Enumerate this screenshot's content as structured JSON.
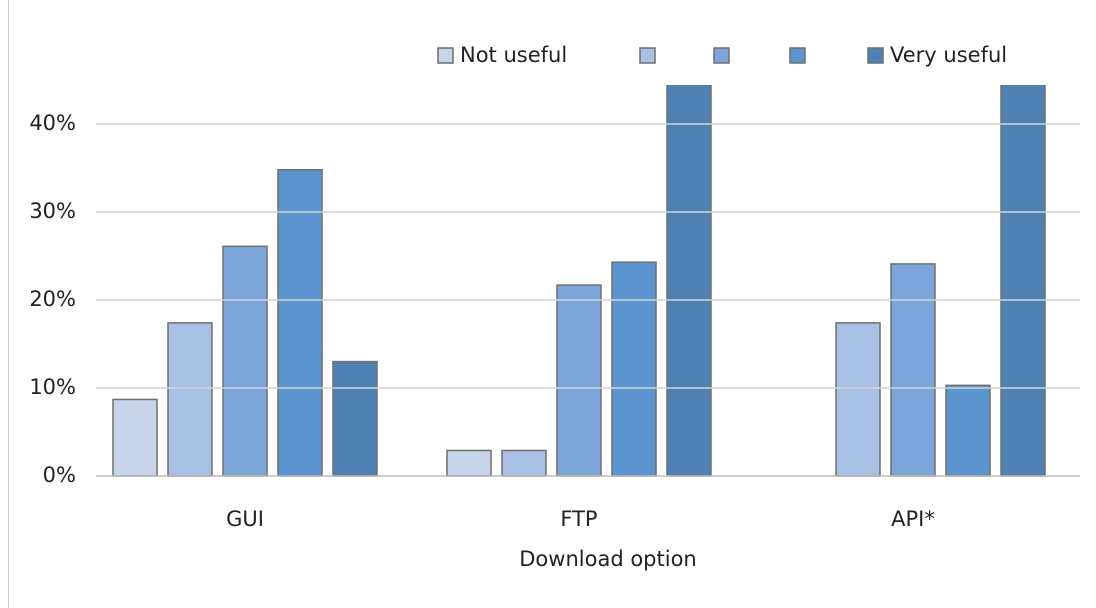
{
  "chart_data": {
    "type": "bar",
    "x_label": "Download option",
    "categories": [
      "GUI",
      "FTP",
      "API*"
    ],
    "series": [
      {
        "name": "Not useful",
        "color": "#c6d5ea",
        "values": [
          8.7,
          2.9,
          0
        ]
      },
      {
        "name": null,
        "color": "#a7c0e3",
        "values": [
          17.4,
          2.9,
          17.4
        ]
      },
      {
        "name": null,
        "color": "#7ca6d9",
        "values": [
          26.1,
          21.7,
          24.1
        ]
      },
      {
        "name": null,
        "color": "#5b94cf",
        "values": [
          34.8,
          24.3,
          10.3
        ]
      },
      {
        "name": "Very useful",
        "color": "#4e80b2",
        "values": [
          13.0,
          48.2,
          48.3
        ]
      }
    ],
    "ylim": [
      0,
      44.4
    ],
    "yticks": [
      {
        "value": 0,
        "label": "0%"
      },
      {
        "value": 10,
        "label": "10%"
      },
      {
        "value": 20,
        "label": "20%"
      },
      {
        "value": 30,
        "label": "30%"
      },
      {
        "value": 40,
        "label": "40%"
      }
    ],
    "grid": true
  }
}
